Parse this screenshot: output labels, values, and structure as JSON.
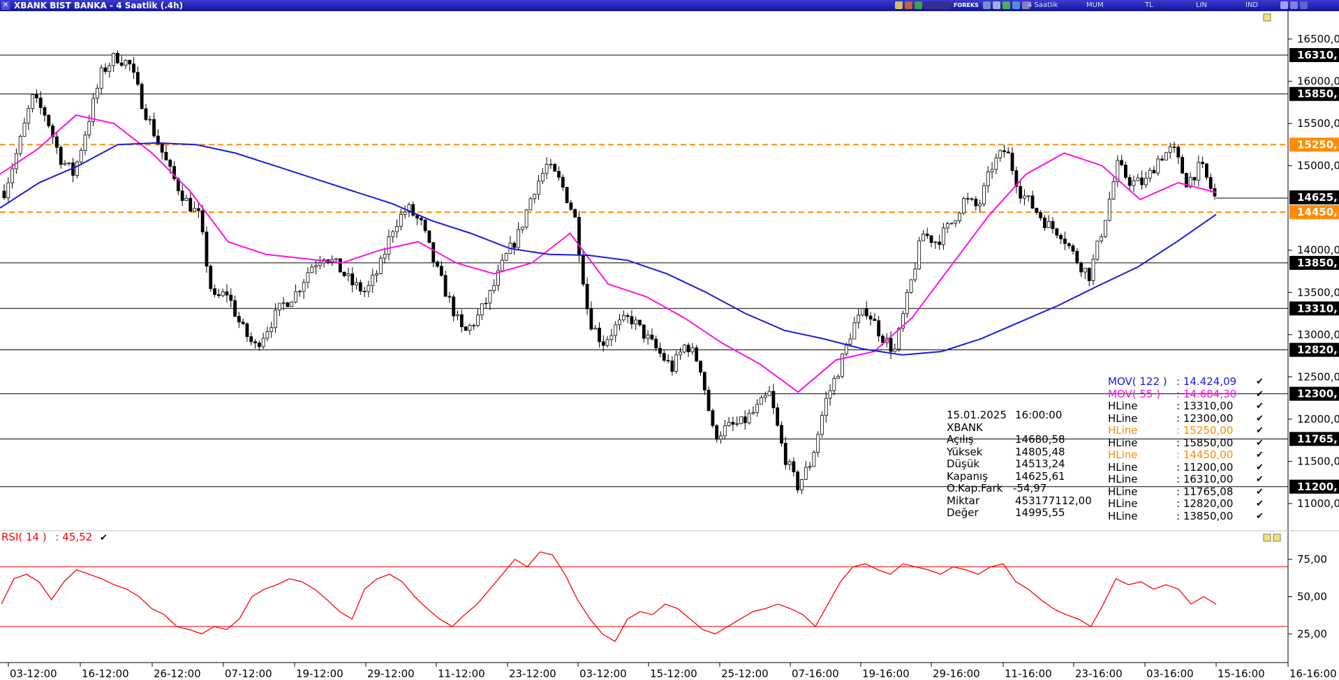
{
  "window": {
    "title": "XBANK BIST BANKA - 4 Saatlik (.4h)",
    "close_icon": "close-icon",
    "toolbar": {
      "forex_label": "FOREKS",
      "period": "4 Saatlik",
      "chart_style": "MUM",
      "currency": "TL",
      "scale": "LIN",
      "indicator": "IND"
    }
  },
  "colors": {
    "mov122": "#1a1adf",
    "mov55": "#ff10e8",
    "hline": "#000000",
    "hline_highlight": "#ff8c00",
    "rsi": "#ff0000",
    "price_box": "#000000",
    "price_box_highlight": "#ff8c00"
  },
  "chart_data": [
    {
      "type": "candlestick",
      "title": "XBANK BIST BANKA - 4 Saatlik (.4h)",
      "x_tick_labels": [
        "03-12:00",
        "16-12:00",
        "26-12:00",
        "07-12:00",
        "19-12:00",
        "29-12:00",
        "11-12:00",
        "23-12:00",
        "03-12:00",
        "15-12:00",
        "25-12:00",
        "07-16:00",
        "19-16:00",
        "29-16:00",
        "11-16:00",
        "23-16:00",
        "03-16:00",
        "15-16:00",
        "16-16:00"
      ],
      "y_tick_labels": [
        "16500,00",
        "16000,00",
        "15500,00",
        "15000,00",
        "14000,00",
        "13500,00",
        "13000,00",
        "12500,00",
        "12000,00",
        "11500,00",
        "11000,00"
      ],
      "ylim": [
        10700,
        16800
      ],
      "grid": false,
      "last_price_label": "14625,",
      "hlines": [
        {
          "value": 16310,
          "label": "16310,",
          "style": "solid",
          "color": "black"
        },
        {
          "value": 15850,
          "label": "15850,",
          "style": "solid",
          "color": "black"
        },
        {
          "value": 15250,
          "label": "15250,",
          "style": "dashed",
          "color": "orange"
        },
        {
          "value": 14450,
          "label": "14450,",
          "style": "dashed",
          "color": "orange"
        },
        {
          "value": 13850,
          "label": "13850,",
          "style": "solid",
          "color": "black"
        },
        {
          "value": 13310,
          "label": "13310,",
          "style": "solid",
          "color": "black"
        },
        {
          "value": 12820,
          "label": "12820,",
          "style": "solid",
          "color": "black"
        },
        {
          "value": 12300,
          "label": "12300,",
          "style": "solid",
          "color": "black"
        },
        {
          "value": 11765,
          "label": "11765,",
          "style": "solid",
          "color": "black"
        },
        {
          "value": 11200,
          "label": "11200,",
          "style": "solid",
          "color": "black"
        }
      ],
      "price_path": [
        14700,
        15200,
        15800,
        15600,
        15100,
        14900,
        15500,
        16100,
        16300,
        16200,
        15700,
        15300,
        14900,
        14600,
        14400,
        13400,
        13500,
        13100,
        12850,
        13100,
        13350,
        13500,
        13800,
        13950,
        13800,
        13600,
        13500,
        13800,
        14300,
        14500,
        14300,
        13800,
        13400,
        13000,
        13200,
        13500,
        13900,
        14200,
        14700,
        15000,
        14800,
        14400,
        13200,
        12900,
        13100,
        13200,
        13000,
        12800,
        12600,
        12900,
        12650,
        11800,
        11900,
        11950,
        12100,
        12300,
        11600,
        11200,
        11500,
        12200,
        12600,
        13100,
        13300,
        13000,
        12800,
        13500,
        14200,
        14100,
        14300,
        14600,
        14500,
        15000,
        15200,
        14700,
        14500,
        14300,
        14200,
        13900,
        13700,
        14300,
        15000,
        14800,
        14800,
        15100,
        15200,
        14800,
        15000,
        14625
      ],
      "mov122": {
        "label": "MOV( 122 )",
        "value": "14.424,09",
        "values": [
          14500,
          14800,
          15000,
          15250,
          15270,
          15250,
          15150,
          15000,
          14850,
          14700,
          14550,
          14350,
          14200,
          14020,
          13950,
          13940,
          13880,
          13720,
          13500,
          13250,
          13050,
          12950,
          12830,
          12760,
          12800,
          12950,
          13150,
          13350,
          13580,
          13800,
          14100,
          14424.09
        ]
      },
      "mov55": {
        "label": "MOV( 55 )",
        "value": "14.684,30",
        "values": [
          14900,
          15200,
          15600,
          15500,
          15150,
          14700,
          14100,
          13950,
          13900,
          13850,
          14000,
          14100,
          13850,
          13720,
          13850,
          14200,
          13600,
          13450,
          13200,
          12900,
          12650,
          12320,
          12700,
          12800,
          13200,
          13800,
          14400,
          14900,
          15150,
          15000,
          14600,
          14800,
          14684.3
        ]
      },
      "ohlc_info": {
        "date": "15.01.2025",
        "time": "16:00:00",
        "symbol": "XBANK",
        "rows": [
          {
            "label": "Açılış",
            "value": "14680,58"
          },
          {
            "label": "Yüksek",
            "value": "14805,48"
          },
          {
            "label": "Düşük",
            "value": "14513,24"
          },
          {
            "label": "Kapanış",
            "value": "14625,61"
          },
          {
            "label": "O.Kap.Fark",
            "value": "-54,97"
          },
          {
            "label": "Miktar",
            "value": "453177112,00"
          },
          {
            "label": "Değer",
            "value": "14995,55"
          }
        ]
      },
      "legend": [
        {
          "label": "MOV( 122 )",
          "value": ": 14.424,09",
          "color": "blue"
        },
        {
          "label": "MOV( 55 )",
          "value": ": 14.684,30",
          "color": "magenta"
        },
        {
          "label": "HLine",
          "value": ": 13310,00",
          "color": "black"
        },
        {
          "label": "HLine",
          "value": ": 12300,00",
          "color": "black"
        },
        {
          "label": "HLine",
          "value": ": 15250,00",
          "color": "orange"
        },
        {
          "label": "HLine",
          "value": ": 15850,00",
          "color": "black"
        },
        {
          "label": "HLine",
          "value": ": 14450,00",
          "color": "orange"
        },
        {
          "label": "HLine",
          "value": ": 11200,00",
          "color": "black"
        },
        {
          "label": "HLine",
          "value": ": 16310,00",
          "color": "black"
        },
        {
          "label": "HLine",
          "value": ": 11765,08",
          "color": "black"
        },
        {
          "label": "HLine",
          "value": ": 12820,00",
          "color": "black"
        },
        {
          "label": "HLine",
          "value": ": 13850,00",
          "color": "black"
        }
      ]
    },
    {
      "type": "line",
      "title": "RSI( 14 )",
      "value_label": ": 45,52",
      "series": [
        {
          "name": "RSI( 14 )",
          "values": [
            45,
            62,
            65,
            60,
            48,
            60,
            68,
            65,
            62,
            58,
            55,
            50,
            42,
            38,
            30,
            28,
            25,
            30,
            28,
            35,
            50,
            55,
            58,
            62,
            60,
            55,
            48,
            40,
            35,
            55,
            62,
            65,
            60,
            50,
            42,
            35,
            30,
            38,
            45,
            55,
            65,
            75,
            70,
            80,
            78,
            65,
            48,
            35,
            25,
            20,
            35,
            40,
            38,
            45,
            42,
            35,
            28,
            25,
            30,
            35,
            40,
            42,
            45,
            42,
            38,
            30,
            45,
            60,
            70,
            72,
            68,
            65,
            72,
            70,
            68,
            65,
            70,
            68,
            65,
            70,
            72,
            60,
            55,
            48,
            42,
            38,
            35,
            30,
            45,
            62,
            58,
            60,
            55,
            58,
            55,
            45,
            50,
            45
          ]
        }
      ],
      "ylim": [
        10,
        85
      ],
      "y_tick_labels": [
        "75,00",
        "50,00",
        "25,00"
      ],
      "reference_lines": [
        70,
        30
      ]
    }
  ]
}
